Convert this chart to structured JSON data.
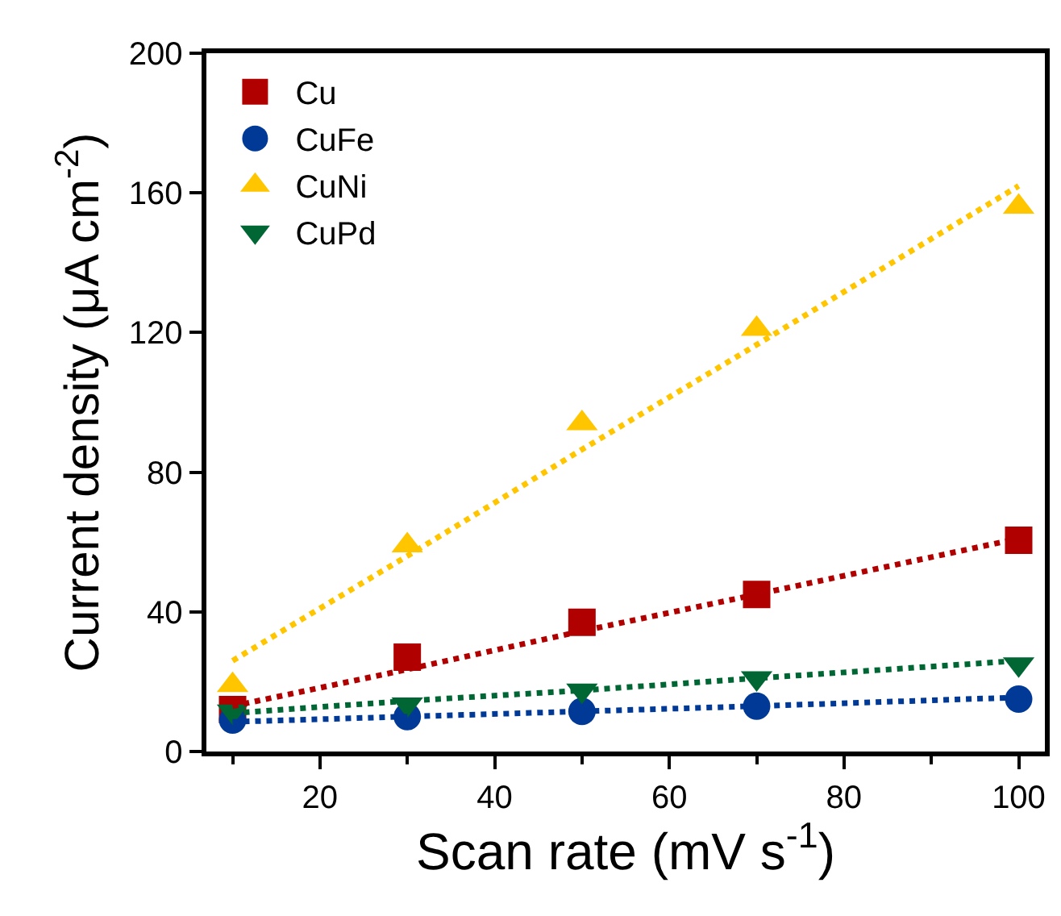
{
  "chart_data": {
    "type": "scatter",
    "xlabel": "Scan rate (mV s$^{-1}$)",
    "ylabel": "Current density (μA cm$^{-2}$)",
    "xlim": [
      7,
      103
    ],
    "xticks": [
      20,
      40,
      60,
      80,
      100
    ],
    "ylim": [
      0,
      200
    ],
    "yticks": [
      0,
      40,
      80,
      120,
      160,
      200
    ],
    "grid": false,
    "legend": "top left",
    "x": [
      10,
      30,
      50,
      70,
      100
    ],
    "series": [
      {
        "name": "Cu",
        "color": "#b00000",
        "marker": "square",
        "values": [
          12,
          27,
          37,
          45,
          60.5
        ]
      },
      {
        "name": "CuFe",
        "color": "#003a96",
        "marker": "circle",
        "values": [
          9,
          10,
          11.5,
          13,
          15
        ]
      },
      {
        "name": "CuNi",
        "color": "#ffc600",
        "marker": "triangle",
        "values": [
          19,
          59,
          94,
          121,
          156
        ]
      },
      {
        "name": "CuPd",
        "color": "#006633",
        "marker": "triangle-down",
        "values": [
          11.5,
          13.5,
          17.5,
          21,
          25
        ]
      },
      {
        "type": "line",
        "color": "#b00000",
        "line_style": "dotted",
        "marker": "none",
        "values": [
          13,
          23.5,
          34.5,
          45,
          61
        ]
      },
      {
        "type": "line",
        "color": "#003a96",
        "line_style": "dotted",
        "marker": "none",
        "values": [
          8.5,
          10,
          11.5,
          13,
          15.5
        ]
      },
      {
        "type": "line",
        "color": "#ffc600",
        "line_style": "dotted",
        "marker": "none",
        "values": [
          26,
          56,
          86.5,
          116.5,
          162
        ]
      },
      {
        "type": "line",
        "color": "#006633",
        "line_style": "dotted",
        "marker": "none",
        "values": [
          11,
          14.5,
          17.5,
          21,
          26
        ]
      }
    ]
  }
}
